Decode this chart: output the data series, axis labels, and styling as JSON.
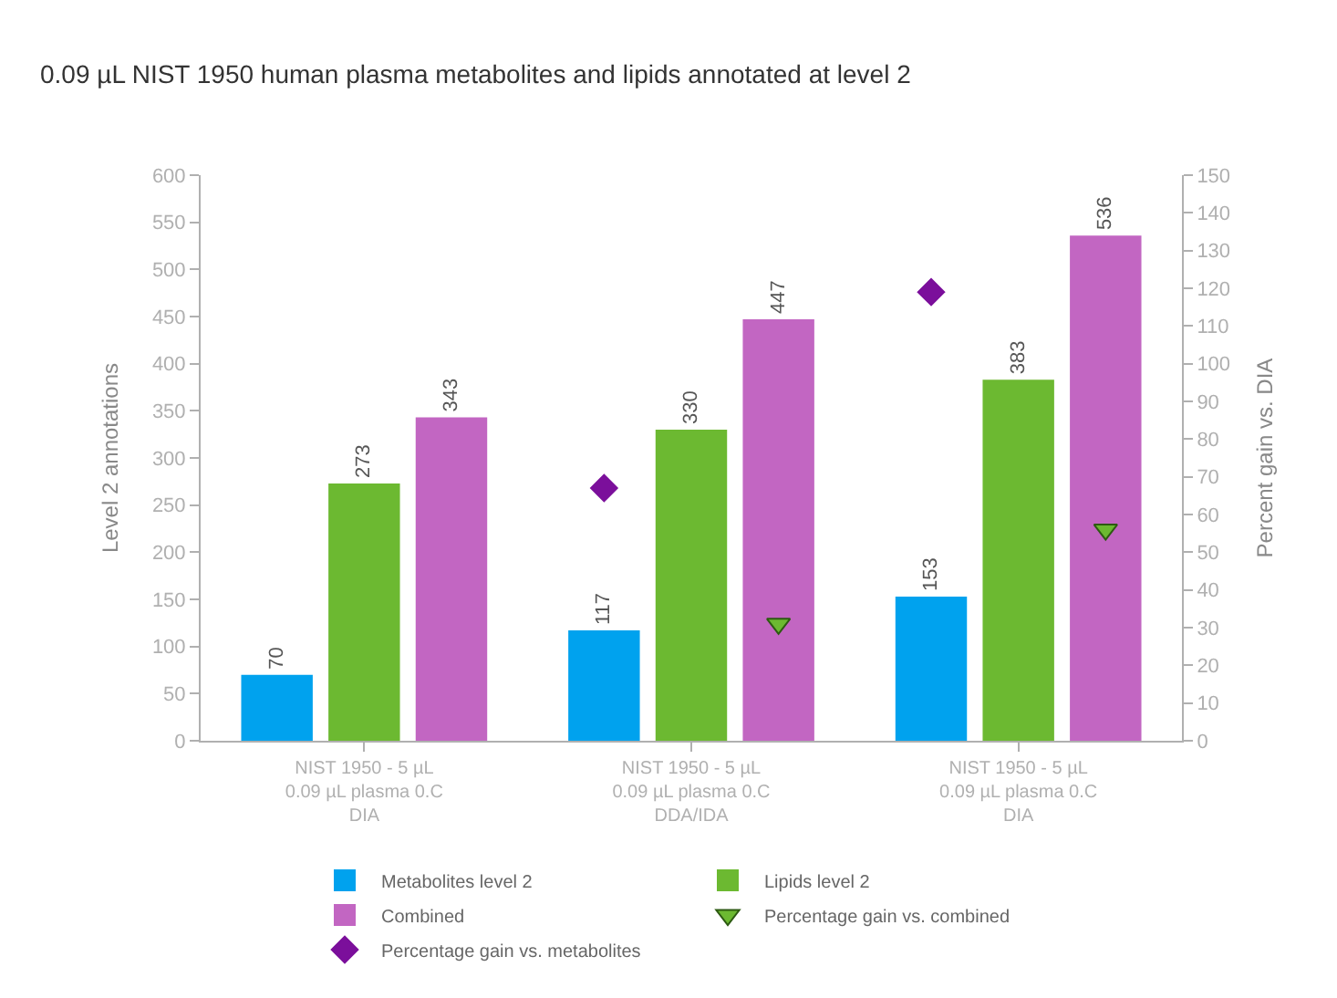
{
  "chart_data": {
    "type": "bar",
    "title": "0.09 µL NIST 1950 human plasma metabolites and lipids annotated at level 2",
    "categories": [
      "NIST 1950 - 5 µL\n0.09 µL plasma 0.C\nDIA",
      "NIST 1950 - 5 µL\n0.09 µL plasma 0.C\nDDA/IDA",
      "NIST 1950 - 5 µL\n0.09 µL plasma 0.C\nDIA"
    ],
    "series": [
      {
        "name": "Metabolites level 2",
        "color": "#00a2ee",
        "values": [
          70,
          117,
          153
        ],
        "value_labels": [
          "70",
          "117",
          "153"
        ]
      },
      {
        "name": "Lipids level 2",
        "color": "#6cb931",
        "values": [
          273,
          330,
          383
        ],
        "value_labels": [
          "273",
          "330",
          "383"
        ]
      },
      {
        "name": "Combined",
        "color": "#c266c2",
        "values": [
          343,
          447,
          536
        ],
        "value_labels": [
          "343",
          "447",
          "536"
        ]
      },
      {
        "name": "Percentage gain vs. combined",
        "type": "scatter",
        "axis": "y2",
        "marker": "triangle",
        "color": "#6cb931",
        "values": [
          null,
          31,
          56
        ]
      },
      {
        "name": "Percentage gain vs. metabolites",
        "type": "scatter",
        "axis": "y2",
        "marker": "diamond",
        "color": "#7b0f9b",
        "values": [
          null,
          67,
          119
        ]
      }
    ],
    "ylabel": "Level 2 annotations",
    "y2label": "Percent gain vs. DIA",
    "ylim": [
      0,
      600
    ],
    "yticks": [
      0,
      50,
      100,
      150,
      200,
      250,
      300,
      350,
      400,
      450,
      500,
      550,
      600
    ],
    "y2lim": [
      0,
      150
    ],
    "y2ticks": [
      0,
      10,
      20,
      30,
      40,
      50,
      60,
      70,
      80,
      90,
      100,
      110,
      120,
      130,
      140,
      150
    ],
    "grid": false,
    "legend": "bottom"
  }
}
